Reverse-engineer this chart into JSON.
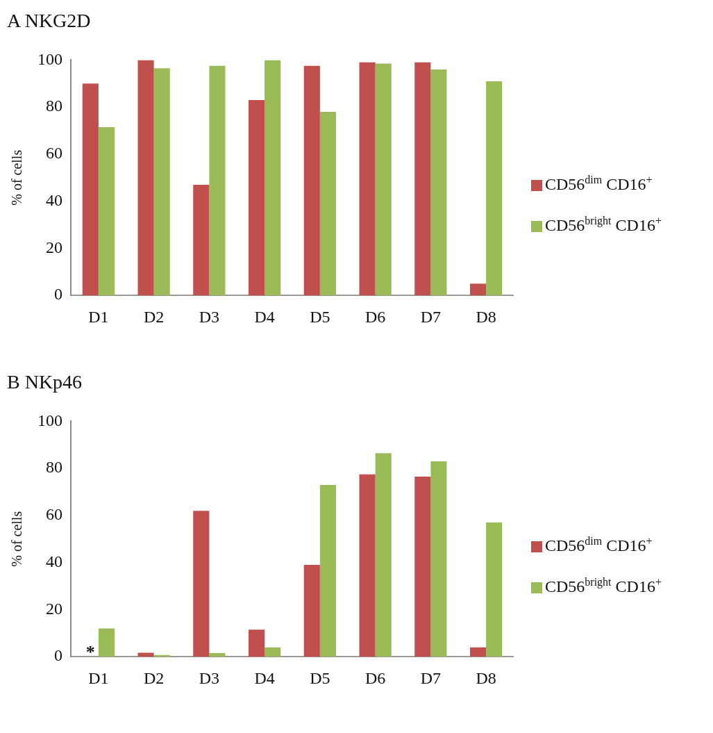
{
  "chart_data": [
    {
      "type": "bar",
      "title": "A  NKG2D",
      "ylabel": "% of cells",
      "categories": [
        "D1",
        "D2",
        "D3",
        "D4",
        "D5",
        "D6",
        "D7",
        "D8"
      ],
      "ylim": [
        0,
        100
      ],
      "yticks": [
        0,
        20,
        40,
        60,
        80,
        100
      ],
      "grid": false,
      "legend": "right",
      "series": [
        {
          "name": "CD56$^{dim}$ CD16$^{+}$",
          "color": "#c0504d",
          "values": [
            90,
            100,
            47,
            83,
            97.5,
            99,
            99,
            5
          ]
        },
        {
          "name": "CD56$^{bright}$ CD16$^{+}$",
          "color": "#9bbb59",
          "values": [
            71.5,
            96.5,
            97.5,
            100,
            78,
            98.5,
            96,
            91
          ]
        }
      ]
    },
    {
      "type": "bar",
      "title": "B  NKp46",
      "ylabel": "% of cells",
      "categories": [
        "D1",
        "D2",
        "D3",
        "D4",
        "D5",
        "D6",
        "D7",
        "D8"
      ],
      "ylim": [
        0,
        100
      ],
      "yticks": [
        0,
        20,
        40,
        60,
        80,
        100
      ],
      "grid": false,
      "legend": "right",
      "annotations": [
        {
          "text": "*",
          "x": "D1",
          "y": 0
        }
      ],
      "series": [
        {
          "name": "CD56$^{dim}$ CD16$^{+}$",
          "color": "#c0504d",
          "values": [
            null,
            1.7,
            62,
            11.5,
            39,
            77.5,
            76.5,
            4
          ]
        },
        {
          "name": "CD56$^{bright}$ CD16$^{+}$",
          "color": "#9bbb59",
          "values": [
            12,
            0.7,
            1.5,
            4,
            73,
            86.5,
            83,
            57
          ]
        }
      ]
    }
  ]
}
